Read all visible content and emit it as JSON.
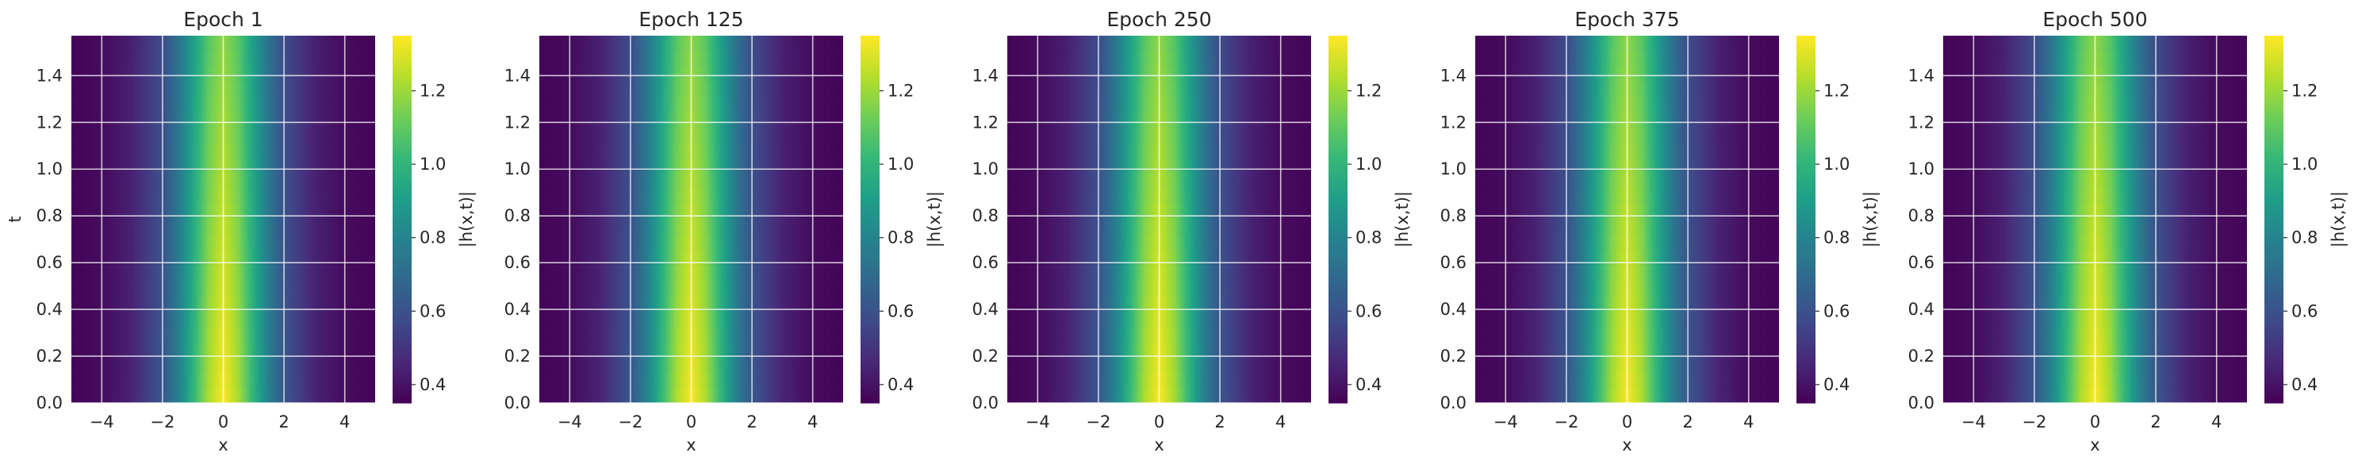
{
  "chart_data": [
    {
      "type": "heatmap",
      "title": "Epoch 1",
      "xlabel": "x",
      "ylabel": "t",
      "colorbar_label": "|h(x,t)|",
      "xlim": [
        -5,
        5
      ],
      "ylim": [
        0,
        1.5708
      ],
      "xticks": [
        -4,
        -2,
        0,
        2,
        4
      ],
      "yticks": [
        0.0,
        0.2,
        0.4,
        0.6,
        0.8,
        1.0,
        1.2,
        1.4
      ],
      "clim": [
        0.35,
        1.35
      ],
      "colorbar_ticks": [
        0.4,
        0.6,
        0.8,
        1.0,
        1.2
      ],
      "colormap": "viridis",
      "grid": true,
      "profile": {
        "x": [
          -5,
          -4,
          -3,
          -2,
          -1.5,
          -1,
          -0.5,
          0,
          0.5,
          1,
          1.5,
          2,
          3,
          4,
          5
        ],
        "abs_h_at_t_0": [
          0.36,
          0.38,
          0.45,
          0.62,
          0.78,
          1.0,
          1.22,
          1.35,
          1.22,
          1.0,
          0.78,
          0.62,
          0.45,
          0.38,
          0.36
        ],
        "abs_h_at_t_max": [
          0.36,
          0.38,
          0.44,
          0.58,
          0.72,
          0.9,
          1.08,
          1.18,
          1.08,
          0.9,
          0.72,
          0.58,
          0.44,
          0.38,
          0.36
        ]
      }
    },
    {
      "type": "heatmap",
      "title": "Epoch 125",
      "xlabel": "x",
      "ylabel": "",
      "colorbar_label": "|h(x,t)|",
      "xlim": [
        -5,
        5
      ],
      "ylim": [
        0,
        1.5708
      ],
      "xticks": [
        -4,
        -2,
        0,
        2,
        4
      ],
      "yticks": [
        0.0,
        0.2,
        0.4,
        0.6,
        0.8,
        1.0,
        1.2,
        1.4
      ],
      "clim": [
        0.35,
        1.35
      ],
      "colorbar_ticks": [
        0.4,
        0.6,
        0.8,
        1.0,
        1.2
      ],
      "colormap": "viridis",
      "grid": true,
      "profile": {
        "x": [
          -5,
          -4,
          -3,
          -2,
          -1.5,
          -1,
          -0.5,
          0,
          0.5,
          1,
          1.5,
          2,
          3,
          4,
          5
        ],
        "abs_h_at_t_0": [
          0.36,
          0.38,
          0.45,
          0.62,
          0.78,
          1.0,
          1.22,
          1.35,
          1.22,
          1.0,
          0.78,
          0.62,
          0.45,
          0.38,
          0.36
        ],
        "abs_h_at_t_max": [
          0.36,
          0.38,
          0.44,
          0.58,
          0.72,
          0.9,
          1.08,
          1.18,
          1.08,
          0.9,
          0.72,
          0.58,
          0.44,
          0.38,
          0.36
        ]
      }
    },
    {
      "type": "heatmap",
      "title": "Epoch 250",
      "xlabel": "x",
      "ylabel": "",
      "colorbar_label": "|h(x,t)|",
      "xlim": [
        -5,
        5
      ],
      "ylim": [
        0,
        1.5708
      ],
      "xticks": [
        -4,
        -2,
        0,
        2,
        4
      ],
      "yticks": [
        0.0,
        0.2,
        0.4,
        0.6,
        0.8,
        1.0,
        1.2,
        1.4
      ],
      "clim": [
        0.35,
        1.35
      ],
      "colorbar_ticks": [
        0.4,
        0.6,
        0.8,
        1.0,
        1.2
      ],
      "colormap": "viridis",
      "grid": true,
      "profile": {
        "x": [
          -5,
          -4,
          -3,
          -2,
          -1.5,
          -1,
          -0.5,
          0,
          0.5,
          1,
          1.5,
          2,
          3,
          4,
          5
        ],
        "abs_h_at_t_0": [
          0.36,
          0.38,
          0.45,
          0.62,
          0.78,
          1.0,
          1.22,
          1.35,
          1.22,
          1.0,
          0.78,
          0.62,
          0.45,
          0.38,
          0.36
        ],
        "abs_h_at_t_max": [
          0.36,
          0.38,
          0.44,
          0.58,
          0.72,
          0.9,
          1.08,
          1.18,
          1.08,
          0.9,
          0.72,
          0.58,
          0.44,
          0.38,
          0.36
        ]
      }
    },
    {
      "type": "heatmap",
      "title": "Epoch 375",
      "xlabel": "x",
      "ylabel": "",
      "colorbar_label": "|h(x,t)|",
      "xlim": [
        -5,
        5
      ],
      "ylim": [
        0,
        1.5708
      ],
      "xticks": [
        -4,
        -2,
        0,
        2,
        4
      ],
      "yticks": [
        0.0,
        0.2,
        0.4,
        0.6,
        0.8,
        1.0,
        1.2,
        1.4
      ],
      "clim": [
        0.35,
        1.35
      ],
      "colorbar_ticks": [
        0.4,
        0.6,
        0.8,
        1.0,
        1.2
      ],
      "colormap": "viridis",
      "grid": true,
      "profile": {
        "x": [
          -5,
          -4,
          -3,
          -2,
          -1.5,
          -1,
          -0.5,
          0,
          0.5,
          1,
          1.5,
          2,
          3,
          4,
          5
        ],
        "abs_h_at_t_0": [
          0.36,
          0.38,
          0.45,
          0.62,
          0.78,
          1.0,
          1.22,
          1.35,
          1.22,
          1.0,
          0.78,
          0.62,
          0.45,
          0.38,
          0.36
        ],
        "abs_h_at_t_max": [
          0.36,
          0.38,
          0.44,
          0.58,
          0.72,
          0.9,
          1.08,
          1.18,
          1.08,
          0.9,
          0.72,
          0.58,
          0.44,
          0.38,
          0.36
        ]
      }
    },
    {
      "type": "heatmap",
      "title": "Epoch 500",
      "xlabel": "x",
      "ylabel": "",
      "colorbar_label": "|h(x,t)|",
      "xlim": [
        -5,
        5
      ],
      "ylim": [
        0,
        1.5708
      ],
      "xticks": [
        -4,
        -2,
        0,
        2,
        4
      ],
      "yticks": [
        0.0,
        0.2,
        0.4,
        0.6,
        0.8,
        1.0,
        1.2,
        1.4
      ],
      "clim": [
        0.35,
        1.35
      ],
      "colorbar_ticks": [
        0.4,
        0.6,
        0.8,
        1.0,
        1.2
      ],
      "colormap": "viridis",
      "grid": true,
      "profile": {
        "x": [
          -5,
          -4,
          -3,
          -2,
          -1.5,
          -1,
          -0.5,
          0,
          0.5,
          1,
          1.5,
          2,
          3,
          4,
          5
        ],
        "abs_h_at_t_0": [
          0.36,
          0.38,
          0.45,
          0.62,
          0.78,
          1.0,
          1.22,
          1.35,
          1.22,
          1.0,
          0.78,
          0.62,
          0.45,
          0.38,
          0.36
        ],
        "abs_h_at_t_max": [
          0.36,
          0.38,
          0.44,
          0.58,
          0.72,
          0.9,
          1.08,
          1.18,
          1.08,
          0.9,
          0.72,
          0.58,
          0.44,
          0.38,
          0.36
        ]
      }
    }
  ],
  "colors": {
    "grid": "#ffffff",
    "text": "#262626",
    "viridis_stops": [
      "#440154",
      "#482878",
      "#3e4a89",
      "#31688e",
      "#26828e",
      "#1f9e89",
      "#35b779",
      "#6ece58",
      "#b5de2b",
      "#fde725"
    ]
  }
}
